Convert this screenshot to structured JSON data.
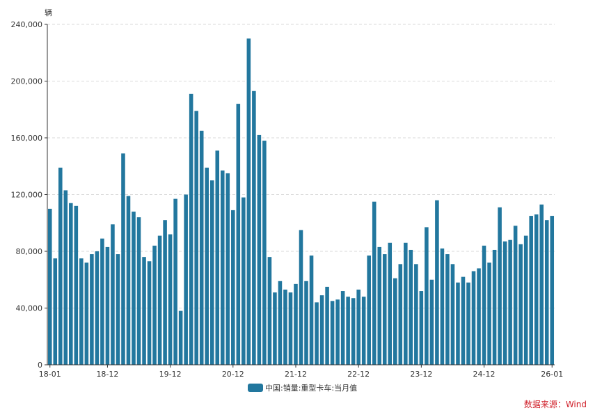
{
  "chart_data": {
    "type": "bar",
    "y_unit": "辆",
    "ylim": [
      0,
      240000
    ],
    "y_ticks": [
      "0",
      "40,000",
      "80,000",
      "120,000",
      "160,000",
      "200,000",
      "240,000"
    ],
    "x_tick_labels": [
      "18-01",
      "18-12",
      "19-12",
      "20-12",
      "21-12",
      "22-12",
      "23-12",
      "24-12",
      "26-01"
    ],
    "grid": true,
    "legend_position": "bottom-center",
    "series": [
      {
        "name": "中国:销量:重型卡车:当月值",
        "color": "#22779e",
        "x": [
          "18-01",
          "18-02",
          "18-03",
          "18-04",
          "18-05",
          "18-06",
          "18-07",
          "18-08",
          "18-09",
          "18-10",
          "18-11",
          "18-12",
          "19-01",
          "19-02",
          "19-03",
          "19-04",
          "19-05",
          "19-06",
          "19-07",
          "19-08",
          "19-09",
          "19-10",
          "19-11",
          "19-12",
          "20-01",
          "20-02",
          "20-03",
          "20-04",
          "20-05",
          "20-06",
          "20-07",
          "20-08",
          "20-09",
          "20-10",
          "20-11",
          "20-12",
          "21-01",
          "21-02",
          "21-03",
          "21-04",
          "21-05",
          "21-06",
          "21-07",
          "21-08",
          "21-09",
          "21-10",
          "21-11",
          "21-12",
          "22-01",
          "22-02",
          "22-03",
          "22-04",
          "22-05",
          "22-06",
          "22-07",
          "22-08",
          "22-09",
          "22-10",
          "22-11",
          "22-12",
          "23-01",
          "23-02",
          "23-03",
          "23-04",
          "23-05",
          "23-06",
          "23-07",
          "23-08",
          "23-09",
          "23-10",
          "23-11",
          "23-12",
          "24-01",
          "24-02",
          "24-03",
          "24-04",
          "24-05",
          "24-06",
          "24-07",
          "24-08",
          "24-09",
          "24-10",
          "24-11",
          "24-12",
          "25-01",
          "25-02",
          "25-03",
          "25-04",
          "25-05",
          "25-06",
          "25-07",
          "25-08",
          "25-09",
          "25-10",
          "25-11",
          "25-12",
          "26-01"
        ],
        "values": [
          110000,
          75000,
          139000,
          123000,
          114000,
          112000,
          75000,
          72000,
          78000,
          80000,
          89000,
          83000,
          99000,
          78000,
          149000,
          119000,
          108000,
          104000,
          76000,
          73000,
          84000,
          91000,
          102000,
          92000,
          117000,
          38000,
          120000,
          191000,
          179000,
          165000,
          139000,
          130000,
          151000,
          137000,
          135000,
          109000,
          184000,
          118000,
          230000,
          193000,
          162000,
          158000,
          76000,
          51000,
          59000,
          53000,
          51000,
          57000,
          95000,
          59000,
          77000,
          44000,
          49000,
          55000,
          45000,
          46000,
          52000,
          48000,
          47000,
          53000,
          48000,
          77000,
          115000,
          83000,
          78000,
          86000,
          61000,
          71000,
          86000,
          81000,
          71000,
          52000,
          97000,
          60000,
          116000,
          82000,
          78000,
          71000,
          58000,
          62000,
          58000,
          66000,
          68000,
          84000,
          72000,
          81000,
          111000,
          87000,
          88000,
          98000,
          85000,
          91000,
          105000,
          106000,
          113000,
          102000,
          105000
        ]
      }
    ]
  },
  "legend": {
    "label": "中国:销量:重型卡车:当月值",
    "swatch_color": "#22779e"
  },
  "source_note": {
    "text": "数据来源：Wind",
    "color": "#d0202a"
  }
}
